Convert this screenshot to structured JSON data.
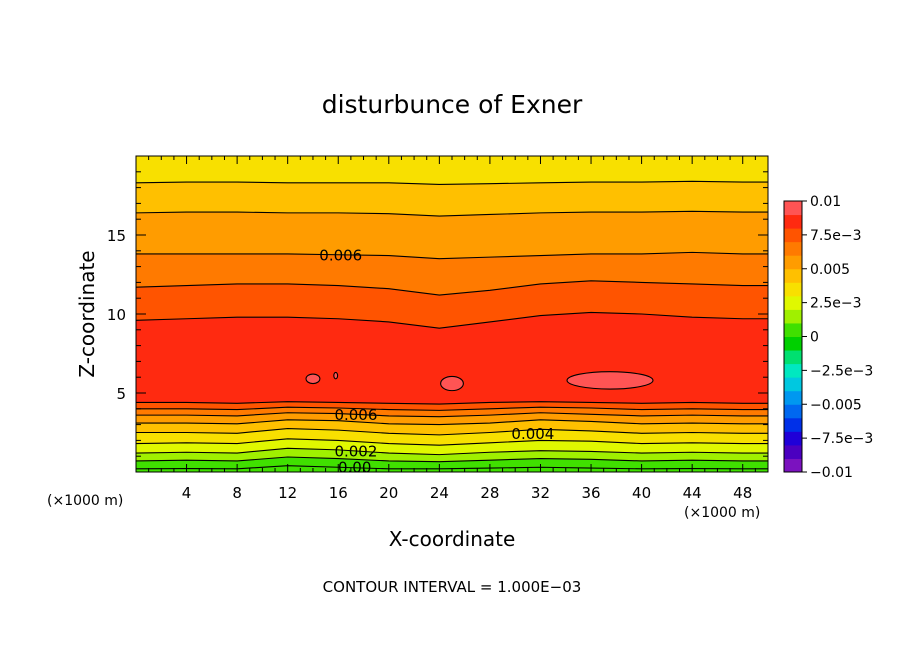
{
  "chart_data": {
    "type": "heatmap",
    "title": "disturbunce of Exner",
    "xlabel": "X-coordinate",
    "ylabel": "Z-coordinate",
    "x_unit_label": "(×1000 m)",
    "x_unit_label_right": "(×1000 m)",
    "xlim": [
      0,
      50
    ],
    "ylim": [
      0,
      20
    ],
    "x_ticks": [
      "4",
      "8",
      "12",
      "16",
      "20",
      "24",
      "28",
      "32",
      "36",
      "40",
      "44",
      "48"
    ],
    "y_ticks": [
      "5",
      "10",
      "15"
    ],
    "x_tick_values": [
      4,
      8,
      12,
      16,
      20,
      24,
      28,
      32,
      36,
      40,
      44,
      48
    ],
    "y_tick_values": [
      5,
      10,
      15
    ],
    "colorbar": {
      "ticks": [
        "0.01",
        "7.5e−3",
        "0.005",
        "2.5e−3",
        "0",
        "−2.5e−3",
        "−0.005",
        "−7.5e−3",
        "−0.01"
      ],
      "tick_values": [
        0.01,
        0.0075,
        0.005,
        0.0025,
        0,
        -0.0025,
        -0.005,
        -0.0075,
        -0.01
      ],
      "levels": [
        -0.01,
        -0.009,
        -0.008,
        -0.007,
        -0.006,
        -0.005,
        -0.004,
        -0.003,
        -0.002,
        -0.001,
        0,
        0.001,
        0.002,
        0.003,
        0.004,
        0.005,
        0.006,
        0.007,
        0.008,
        0.009,
        0.01
      ],
      "colors": [
        "#7b12bf",
        "#4b00c0",
        "#1f00d8",
        "#0030e8",
        "#0068f0",
        "#0098f0",
        "#00c8e0",
        "#00e8c0",
        "#00e070",
        "#00d000",
        "#40e000",
        "#a0f000",
        "#e0f800",
        "#f8e000",
        "#ffc000",
        "#ff9c00",
        "#ff7a00",
        "#ff5400",
        "#ff2a10",
        "#ff5454"
      ]
    },
    "contour_interval_text": "CONTOUR INTERVAL = 1.000E−03",
    "contour_labels": [
      {
        "text": "0.006",
        "x": 16.2,
        "z": 13.7
      },
      {
        "text": "0.006",
        "x": 17.4,
        "z": 3.6
      },
      {
        "text": "0.004",
        "x": 31.4,
        "z": 2.4
      },
      {
        "text": "0.002",
        "x": 17.4,
        "z": 1.3
      },
      {
        "text": "0.00",
        "x": 17.3,
        "z": 0.3
      }
    ],
    "level_profile": {
      "x": [
        0,
        4,
        8,
        12,
        16,
        20,
        24,
        28,
        32,
        36,
        40,
        44,
        48,
        50
      ],
      "z_0.000": [
        0.2,
        0.22,
        0.2,
        0.4,
        0.3,
        0.2,
        0.2,
        0.25,
        0.3,
        0.25,
        0.2,
        0.22,
        0.2,
        0.2
      ],
      "z_0.001": [
        0.7,
        0.75,
        0.7,
        0.95,
        0.85,
        0.7,
        0.65,
        0.75,
        0.85,
        0.8,
        0.7,
        0.75,
        0.7,
        0.7
      ],
      "z_0.002": [
        1.2,
        1.25,
        1.2,
        1.5,
        1.4,
        1.2,
        1.1,
        1.25,
        1.35,
        1.3,
        1.2,
        1.25,
        1.2,
        1.2
      ],
      "z_0.003": [
        1.8,
        1.85,
        1.8,
        2.1,
        2.0,
        1.8,
        1.7,
        1.85,
        2.0,
        1.95,
        1.8,
        1.85,
        1.8,
        1.8
      ],
      "z_0.004": [
        2.5,
        2.5,
        2.45,
        2.75,
        2.65,
        2.45,
        2.35,
        2.5,
        2.7,
        2.6,
        2.45,
        2.5,
        2.45,
        2.45
      ],
      "z_0.005": [
        3.1,
        3.1,
        3.05,
        3.3,
        3.25,
        3.05,
        3.0,
        3.1,
        3.3,
        3.2,
        3.05,
        3.1,
        3.05,
        3.05
      ],
      "z_0.006": [
        3.6,
        3.6,
        3.55,
        3.75,
        3.7,
        3.55,
        3.5,
        3.6,
        3.75,
        3.65,
        3.55,
        3.6,
        3.55,
        3.55
      ],
      "z_0.007": [
        4.0,
        4.0,
        3.95,
        4.1,
        4.05,
        3.95,
        3.9,
        4.0,
        4.1,
        4.05,
        3.95,
        4.0,
        3.95,
        3.95
      ],
      "z_0.008": [
        4.4,
        4.4,
        4.35,
        4.45,
        4.4,
        4.35,
        4.3,
        4.4,
        4.45,
        4.4,
        4.35,
        4.4,
        4.35,
        4.35
      ],
      "z_0.008_upper": [
        9.6,
        9.7,
        9.8,
        9.8,
        9.7,
        9.5,
        9.1,
        9.5,
        9.9,
        10.1,
        10.0,
        9.8,
        9.7,
        9.7
      ],
      "z_0.007_upper": [
        11.7,
        11.8,
        11.9,
        11.9,
        11.8,
        11.6,
        11.2,
        11.5,
        11.9,
        12.1,
        12.0,
        11.9,
        11.8,
        11.8
      ],
      "z_0.006_upper": [
        13.8,
        13.8,
        13.8,
        13.8,
        13.75,
        13.7,
        13.5,
        13.6,
        13.7,
        13.8,
        13.8,
        13.9,
        13.8,
        13.8
      ],
      "z_0.005_upper": [
        16.4,
        16.45,
        16.45,
        16.4,
        16.4,
        16.35,
        16.2,
        16.3,
        16.4,
        16.45,
        16.45,
        16.5,
        16.45,
        16.45
      ],
      "z_0.004_upper": [
        18.3,
        18.35,
        18.35,
        18.3,
        18.3,
        18.3,
        18.2,
        18.25,
        18.3,
        18.35,
        18.35,
        18.4,
        18.35,
        18.35
      ]
    },
    "closed_regions": [
      {
        "level": 0.009,
        "cx": 14.0,
        "cz": 5.9,
        "rx": 0.55,
        "rz": 0.3
      },
      {
        "level": 0.009,
        "cx": 15.8,
        "cz": 6.1,
        "rx": 0.15,
        "rz": 0.2
      },
      {
        "level": 0.009,
        "cx": 25.0,
        "cz": 5.6,
        "rx": 0.9,
        "rz": 0.45
      },
      {
        "level": 0.009,
        "cx": 37.5,
        "cz": 5.8,
        "rx": 3.4,
        "rz": 0.55
      }
    ]
  }
}
